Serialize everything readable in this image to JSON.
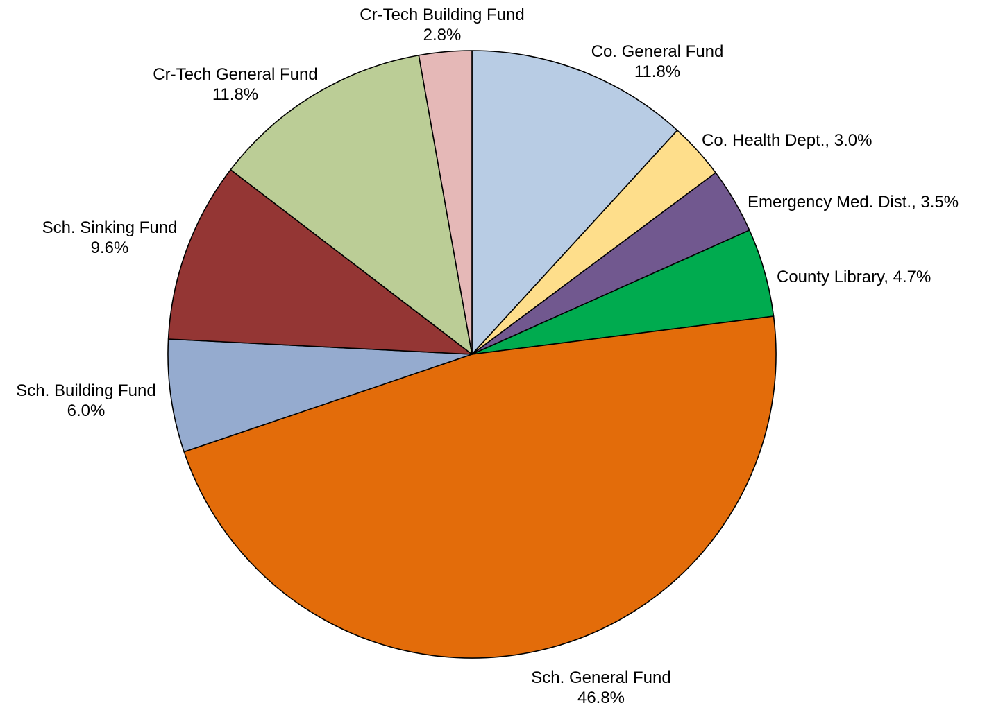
{
  "chart_data": {
    "type": "pie",
    "title": "",
    "start_angle_deg": 0,
    "direction": "clockwise",
    "legend": "none",
    "slices": [
      {
        "label": "Co. General Fund",
        "value": 11.8,
        "percent_label": "11.8%",
        "color": "#b8cce4",
        "label_style": "two-line"
      },
      {
        "label": "Co. Health Dept.",
        "value": 3.0,
        "percent_label": "3.0%",
        "color": "#fede8b",
        "label_style": "inline"
      },
      {
        "label": "Emergency Med. Dist.",
        "value": 3.5,
        "percent_label": "3.5%",
        "color": "#71588f",
        "label_style": "inline"
      },
      {
        "label": "County Library",
        "value": 4.7,
        "percent_label": "4.7%",
        "color": "#00ab4f",
        "label_style": "inline"
      },
      {
        "label": "Sch. General Fund",
        "value": 46.8,
        "percent_label": "46.8%",
        "color": "#e36c0a",
        "label_style": "two-line"
      },
      {
        "label": "Sch. Building Fund",
        "value": 6.0,
        "percent_label": "6.0%",
        "color": "#95abcf",
        "label_style": "two-line"
      },
      {
        "label": "Sch. Sinking Fund",
        "value": 9.6,
        "percent_label": "9.6%",
        "color": "#943634",
        "label_style": "two-line"
      },
      {
        "label": "Cr-Tech General Fund",
        "value": 11.8,
        "percent_label": "11.8%",
        "color": "#bbcd96",
        "label_style": "two-line"
      },
      {
        "label": "Cr-Tech Building Fund",
        "value": 2.8,
        "percent_label": "2.8%",
        "color": "#e5b8b7",
        "label_style": "two-line"
      }
    ]
  }
}
